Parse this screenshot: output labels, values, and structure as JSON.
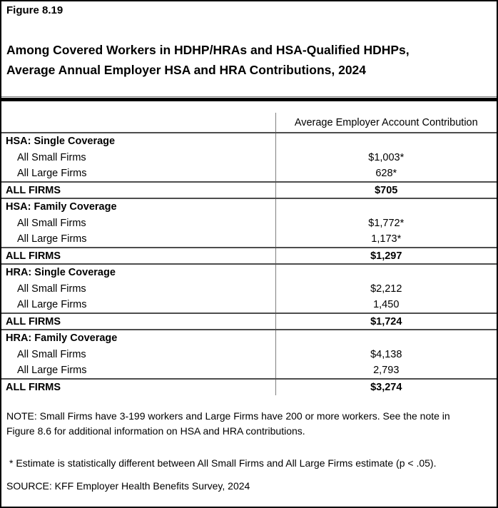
{
  "page": {
    "figure_label": "Figure 8.19",
    "title_line1": "Among Covered Workers in HDHP/HRAs and HSA-Qualified HDHPs,",
    "title_line2": "Average Annual Employer HSA and HRA Contributions, 2024"
  },
  "table": {
    "value_column_header": "Average Employer Account Contribution",
    "rows": [
      {
        "type": "section",
        "label": "HSA: Single Coverage",
        "value": ""
      },
      {
        "type": "item",
        "label": "All Small Firms",
        "value": "$1,003*"
      },
      {
        "type": "item",
        "label": "All Large Firms",
        "value": "628*"
      },
      {
        "type": "total",
        "label": "ALL FIRMS",
        "value": "$705"
      },
      {
        "type": "section",
        "label": "HSA: Family Coverage",
        "value": ""
      },
      {
        "type": "item",
        "label": "All Small Firms",
        "value": "$1,772*"
      },
      {
        "type": "item",
        "label": "All Large Firms",
        "value": "1,173*"
      },
      {
        "type": "total",
        "label": "ALL FIRMS",
        "value": "$1,297"
      },
      {
        "type": "section",
        "label": "HRA: Single Coverage",
        "value": ""
      },
      {
        "type": "item",
        "label": "All Small Firms",
        "value": "$2,212"
      },
      {
        "type": "item",
        "label": "All Large Firms",
        "value": "1,450"
      },
      {
        "type": "total",
        "label": "ALL FIRMS",
        "value": "$1,724"
      },
      {
        "type": "section",
        "label": "HRA: Family Coverage",
        "value": ""
      },
      {
        "type": "item",
        "label": "All Small Firms",
        "value": "$4,138"
      },
      {
        "type": "item",
        "label": "All Large Firms",
        "value": "2,793"
      },
      {
        "type": "total",
        "label": "ALL FIRMS",
        "value": "$3,274"
      }
    ]
  },
  "notes": {
    "note_line1": "NOTE: Small Firms have 3-199 workers and Large Firms have 200 or more workers. See the note in",
    "note_line2": "Figure 8.6 for additional information on HSA and HRA contributions.",
    "estimate_note": "* Estimate is statistically different between All Small Firms and All Large Firms estimate (p < .05).",
    "source": "SOURCE: KFF Employer Health Benefits Survey, 2024"
  },
  "colors": {
    "background": "#ffffff",
    "text": "#000000",
    "outer_border": "#000000",
    "thick_bar": "#000000",
    "section_line": "#4d4d4d",
    "column_divider": "#808080"
  }
}
